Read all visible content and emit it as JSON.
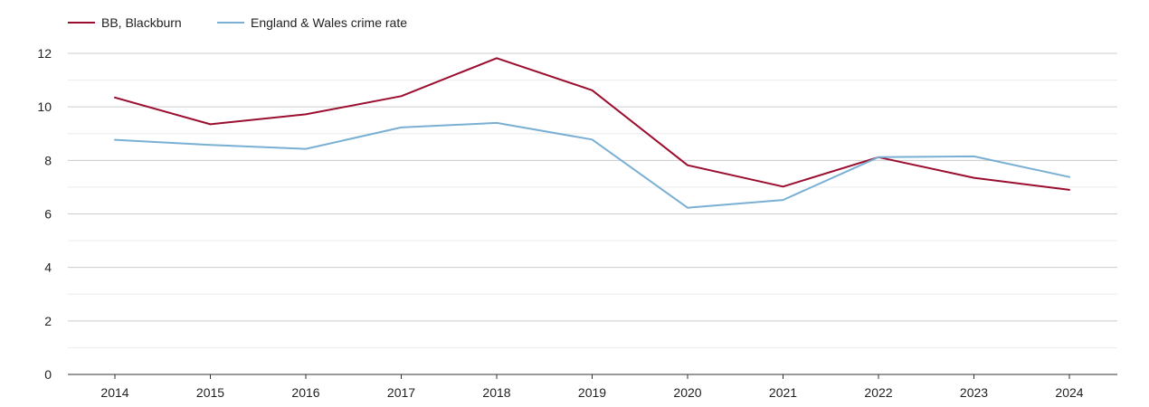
{
  "chart_data": {
    "type": "line",
    "title": "",
    "xlabel": "",
    "ylabel": "",
    "x": [
      "2014",
      "2015",
      "2016",
      "2017",
      "2018",
      "2019",
      "2020",
      "2021",
      "2022",
      "2023",
      "2024"
    ],
    "ylim": [
      0,
      12
    ],
    "yticks": [
      "0",
      "2",
      "4",
      "6",
      "8",
      "10",
      "12"
    ],
    "grid": true,
    "legend_position": "top-left",
    "series": [
      {
        "name": "BB, Blackburn",
        "color": "#9b0d2e",
        "values": [
          10.35,
          9.35,
          9.72,
          10.4,
          11.82,
          10.62,
          7.82,
          7.02,
          8.12,
          7.35,
          6.9
        ]
      },
      {
        "name": "England & Wales crime rate",
        "color": "#7aafd4",
        "values": [
          8.77,
          8.58,
          8.43,
          9.23,
          9.4,
          8.78,
          6.23,
          6.52,
          8.12,
          8.15,
          7.38
        ]
      }
    ]
  }
}
